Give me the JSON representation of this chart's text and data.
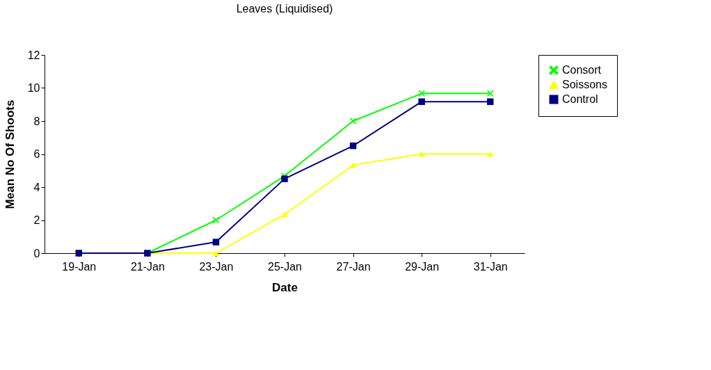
{
  "chart_data": {
    "type": "line",
    "title": "Leaves (Liquidised)",
    "xlabel": "Date",
    "ylabel": "Mean No Of Shoots",
    "categories": [
      "19-Jan",
      "21-Jan",
      "23-Jan",
      "25-Jan",
      "27-Jan",
      "29-Jan",
      "31-Jan"
    ],
    "series": [
      {
        "name": "Consort",
        "color": "#00ff00",
        "marker": "cross",
        "values": [
          0,
          0,
          2,
          4.67,
          8,
          9.67,
          9.67
        ]
      },
      {
        "name": "Soissons",
        "color": "#ffff00",
        "marker": "triangle",
        "values": [
          0,
          0,
          0,
          2.33,
          5.33,
          6,
          6
        ]
      },
      {
        "name": "Control",
        "color": "#000080",
        "marker": "square",
        "values": [
          0,
          0,
          0.67,
          4.5,
          6.5,
          9.17,
          9.17
        ]
      }
    ],
    "ylim": [
      0,
      12
    ],
    "yticks": [
      0,
      2,
      4,
      6,
      8,
      10,
      12
    ],
    "grid": false,
    "legend": "right",
    "line_style": "solid"
  }
}
